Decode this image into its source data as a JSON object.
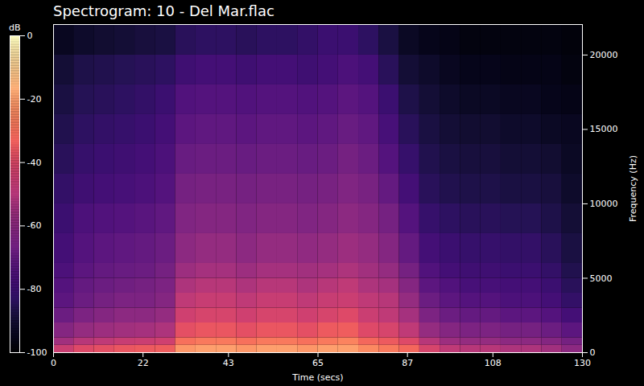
{
  "chart_data": {
    "type": "heatmap",
    "title": "Spectrogram: 10 - Del Mar.flac",
    "x_label": "Time (secs)",
    "y_label": "Frequency (Hz)",
    "xlim": [
      0,
      130
    ],
    "xticks": [
      0,
      22,
      43,
      65,
      87,
      108,
      130
    ],
    "ylim": [
      0,
      22050
    ],
    "yticks": [
      0,
      5000,
      10000,
      15000,
      20000
    ],
    "x_bins": [
      0,
      5,
      10,
      15,
      20,
      25,
      30,
      35,
      40,
      45,
      50,
      55,
      60,
      65,
      70,
      75,
      80,
      85,
      90,
      95,
      100,
      105,
      110,
      115,
      120,
      125,
      130
    ],
    "y_bins": [
      0,
      500,
      1000,
      2000,
      3000,
      4000,
      5000,
      6000,
      8000,
      10000,
      12000,
      14000,
      16000,
      18000,
      20000,
      22050
    ],
    "cells": [
      [
        -45,
        -40,
        -38,
        -36,
        -35,
        -34,
        -22,
        -20,
        -20,
        -22,
        -20,
        -20,
        -22,
        -20,
        -20,
        -25,
        -28,
        -32,
        -42,
        -48,
        -50,
        -50,
        -52,
        -52,
        -55,
        -60
      ],
      [
        -55,
        -50,
        -48,
        -46,
        -45,
        -44,
        -30,
        -28,
        -28,
        -30,
        -28,
        -28,
        -30,
        -28,
        -26,
        -32,
        -35,
        -40,
        -50,
        -56,
        -58,
        -58,
        -60,
        -60,
        -62,
        -66
      ],
      [
        -62,
        -58,
        -56,
        -55,
        -54,
        -52,
        -38,
        -36,
        -36,
        -38,
        -36,
        -36,
        -38,
        -35,
        -34,
        -40,
        -42,
        -48,
        -58,
        -62,
        -64,
        -64,
        -66,
        -66,
        -68,
        -72
      ],
      [
        -68,
        -64,
        -62,
        -60,
        -60,
        -58,
        -44,
        -42,
        -42,
        -44,
        -42,
        -42,
        -44,
        -42,
        -40,
        -45,
        -48,
        -54,
        -64,
        -68,
        -70,
        -70,
        -72,
        -72,
        -74,
        -78
      ],
      [
        -72,
        -68,
        -66,
        -64,
        -64,
        -62,
        -48,
        -46,
        -46,
        -48,
        -46,
        -46,
        -48,
        -46,
        -45,
        -48,
        -50,
        -58,
        -68,
        -72,
        -74,
        -74,
        -76,
        -76,
        -78,
        -82
      ],
      [
        -74,
        -70,
        -68,
        -67,
        -66,
        -64,
        -52,
        -50,
        -50,
        -52,
        -50,
        -50,
        -52,
        -50,
        -48,
        -52,
        -54,
        -62,
        -72,
        -75,
        -77,
        -77,
        -78,
        -78,
        -80,
        -84
      ],
      [
        -76,
        -72,
        -70,
        -69,
        -68,
        -66,
        -56,
        -54,
        -54,
        -56,
        -54,
        -54,
        -55,
        -54,
        -52,
        -55,
        -58,
        -66,
        -75,
        -78,
        -79,
        -79,
        -80,
        -80,
        -82,
        -86
      ],
      [
        -78,
        -74,
        -72,
        -71,
        -70,
        -68,
        -60,
        -58,
        -58,
        -60,
        -58,
        -58,
        -59,
        -58,
        -56,
        -58,
        -62,
        -70,
        -78,
        -80,
        -81,
        -81,
        -82,
        -82,
        -84,
        -88
      ],
      [
        -80,
        -76,
        -75,
        -74,
        -73,
        -71,
        -63,
        -62,
        -62,
        -63,
        -62,
        -62,
        -63,
        -62,
        -60,
        -62,
        -66,
        -74,
        -81,
        -83,
        -84,
        -84,
        -85,
        -85,
        -87,
        -90
      ],
      [
        -82,
        -79,
        -78,
        -77,
        -76,
        -74,
        -66,
        -65,
        -65,
        -66,
        -65,
        -65,
        -66,
        -65,
        -63,
        -65,
        -70,
        -78,
        -84,
        -86,
        -87,
        -87,
        -88,
        -88,
        -89,
        -92
      ],
      [
        -84,
        -81,
        -80,
        -79,
        -78,
        -76,
        -69,
        -68,
        -68,
        -69,
        -68,
        -68,
        -69,
        -68,
        -66,
        -68,
        -74,
        -81,
        -86,
        -88,
        -89,
        -89,
        -90,
        -90,
        -91,
        -93
      ],
      [
        -86,
        -83,
        -82,
        -81,
        -80,
        -78,
        -72,
        -71,
        -71,
        -72,
        -71,
        -71,
        -72,
        -71,
        -69,
        -71,
        -77,
        -84,
        -88,
        -90,
        -91,
        -91,
        -92,
        -92,
        -93,
        -94
      ],
      [
        -88,
        -85,
        -84,
        -83,
        -82,
        -80,
        -75,
        -74,
        -74,
        -75,
        -74,
        -74,
        -75,
        -74,
        -72,
        -74,
        -80,
        -87,
        -90,
        -92,
        -93,
        -93,
        -94,
        -94,
        -95,
        -96
      ],
      [
        -90,
        -87,
        -86,
        -85,
        -84,
        -83,
        -79,
        -78,
        -78,
        -79,
        -78,
        -78,
        -79,
        -78,
        -76,
        -78,
        -84,
        -90,
        -92,
        -94,
        -95,
        -95,
        -96,
        -96,
        -96,
        -97
      ],
      [
        -94,
        -92,
        -91,
        -90,
        -89,
        -88,
        -84,
        -83,
        -83,
        -84,
        -83,
        -83,
        -82,
        -80,
        -80,
        -83,
        -88,
        -93,
        -95,
        -96,
        -97,
        -97,
        -97,
        -97,
        -97,
        -98
      ]
    ],
    "colorbar": {
      "label": "dB",
      "range": [
        -100,
        0
      ],
      "ticks": [
        0,
        -20,
        -40,
        -60,
        -80,
        -100
      ]
    }
  }
}
